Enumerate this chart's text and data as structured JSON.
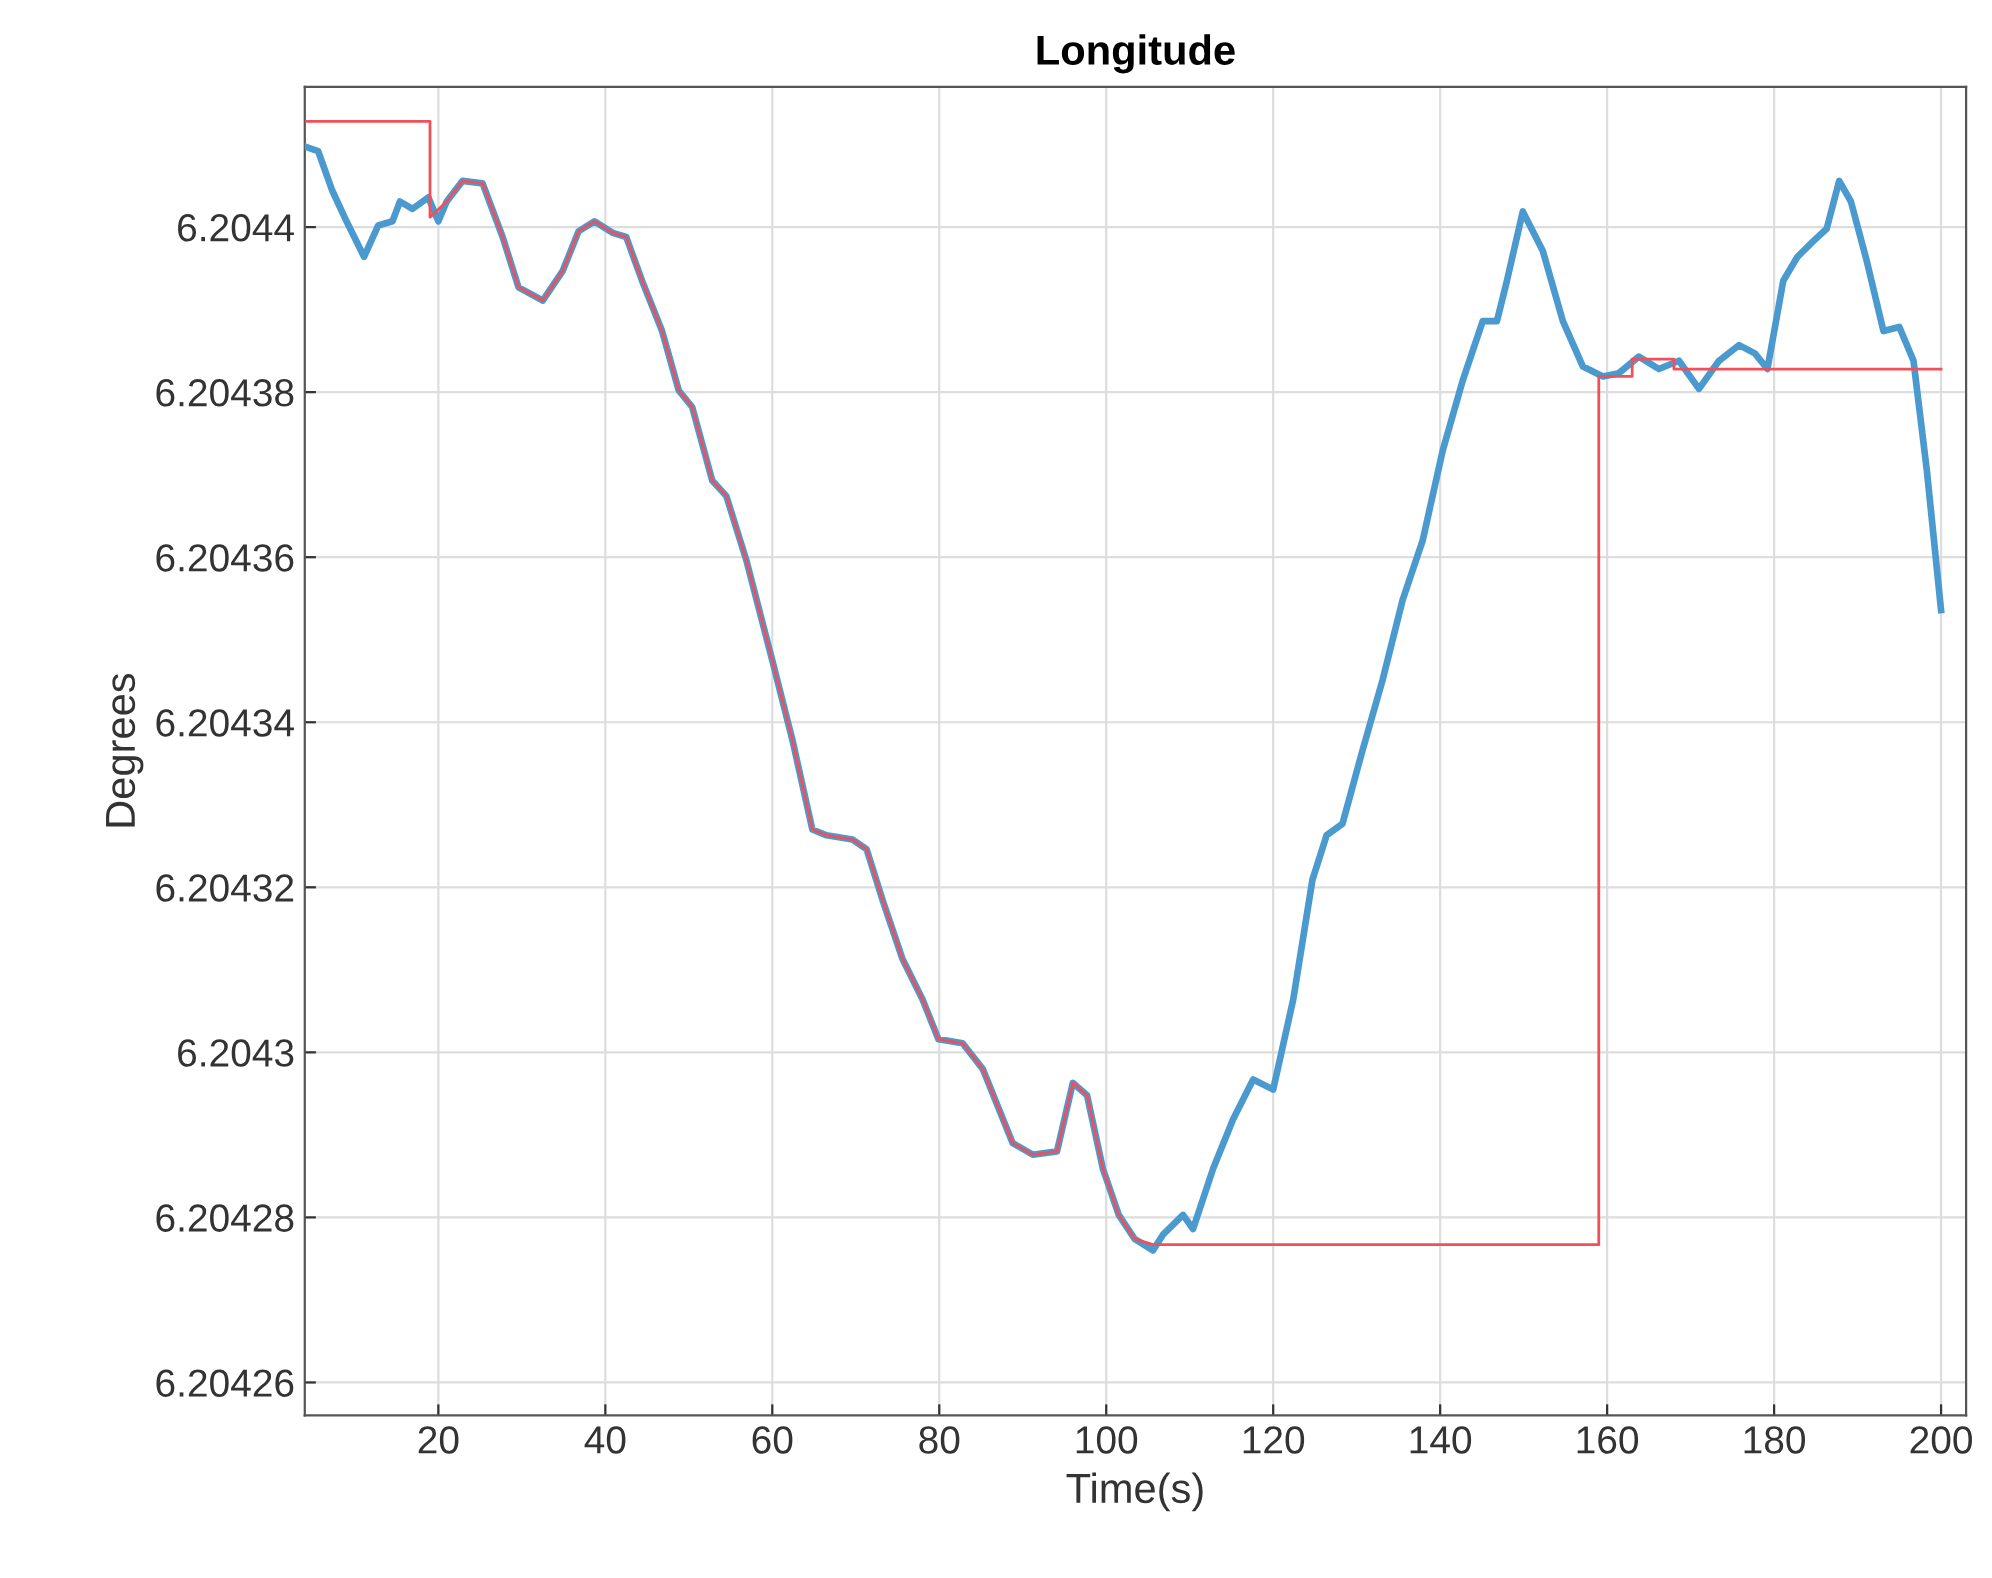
{
  "chart_data": {
    "type": "line",
    "title": "Longitude",
    "xlabel": "Time(s)",
    "ylabel": "Degrees",
    "xlim": [
      4,
      203
    ],
    "ylim": [
      6.204256,
      6.204417
    ],
    "xticks": [
      20,
      40,
      60,
      80,
      100,
      120,
      140,
      160,
      180,
      200
    ],
    "yticks": [
      6.20426,
      6.20428,
      6.2043,
      6.20432,
      6.20434,
      6.20436,
      6.20438,
      6.2044
    ],
    "grid": true,
    "marker": "none",
    "line_style": "solid",
    "series": [
      {
        "color": "#f0505a",
        "x": [
          4.2,
          19.0,
          19.0,
          21.0,
          22.9,
          25.3,
          27.7,
          29.6,
          32.5,
          34.9,
          36.8,
          38.7,
          40.9,
          42.5,
          44.4,
          46.8,
          48.8,
          50.4,
          52.8,
          54.5,
          56.9,
          60.0,
          62.4,
          64.8,
          66.5,
          69.6,
          71.3,
          73.2,
          75.6,
          78.0,
          79.9,
          82.8,
          85.2,
          88.8,
          91.2,
          94.1,
          96.0,
          97.7,
          99.6,
          101.5,
          103.4,
          105.6,
          159.0,
          159.0,
          163.0,
          163.0,
          168.0,
          168.0,
          200.0
        ],
        "values": [
          6.2044128,
          6.2044128,
          6.2044012,
          6.2044031,
          6.2044056,
          6.2044053,
          6.2043988,
          6.2043927,
          6.2043911,
          6.2043947,
          6.2043995,
          6.2044007,
          6.2043993,
          6.2043988,
          6.2043935,
          6.2043874,
          6.2043802,
          6.2043782,
          6.2043693,
          6.2043674,
          6.2043596,
          6.2043475,
          6.2043379,
          6.204327,
          6.2043263,
          6.2043258,
          6.2043246,
          6.2043185,
          6.2043113,
          6.2043064,
          6.2043016,
          6.2043011,
          6.204298,
          6.204289,
          6.2042876,
          6.204288,
          6.2042963,
          6.2042948,
          6.2042859,
          6.2042803,
          6.2042774,
          6.2042767,
          6.2042767,
          6.2043819,
          6.2043819,
          6.204384,
          6.204384,
          6.2043828,
          6.2043828
        ]
      },
      {
        "color": "#4a9ad0",
        "x": [
          4.2,
          5.6,
          7.3,
          9.0,
          11.1,
          12.8,
          14.5,
          15.4,
          16.9,
          18.8,
          20.0,
          21.0,
          22.9,
          25.3,
          27.7,
          29.6,
          32.5,
          34.9,
          36.8,
          38.7,
          40.9,
          42.5,
          44.4,
          46.8,
          48.8,
          50.4,
          52.8,
          54.5,
          56.9,
          60.0,
          62.4,
          64.8,
          66.5,
          69.6,
          71.3,
          73.2,
          75.6,
          78.0,
          79.9,
          82.8,
          85.2,
          88.8,
          91.2,
          94.1,
          96.0,
          97.7,
          99.6,
          101.5,
          103.4,
          105.6,
          106.8,
          109.2,
          110.4,
          112.8,
          115.2,
          117.6,
          120.0,
          122.4,
          124.7,
          126.4,
          128.3,
          130.7,
          133.1,
          135.5,
          137.9,
          140.3,
          142.7,
          145.1,
          146.8,
          148.0,
          149.9,
          152.3,
          154.7,
          157.1,
          159.5,
          161.4,
          163.8,
          166.2,
          168.6,
          171.0,
          173.4,
          175.8,
          177.7,
          179.2,
          181.1,
          182.8,
          184.7,
          186.3,
          187.8,
          189.2,
          191.1,
          193.1,
          195.0,
          196.7,
          198.3,
          200.0
        ],
        "values": [
          6.2044097,
          6.2044092,
          6.2044044,
          6.2044007,
          6.2043964,
          6.2044002,
          6.2044007,
          6.2044031,
          6.2044022,
          6.2044036,
          6.2044007,
          6.2044031,
          6.2044056,
          6.2044053,
          6.2043988,
          6.2043927,
          6.2043911,
          6.2043947,
          6.2043995,
          6.2044007,
          6.2043993,
          6.2043988,
          6.2043935,
          6.2043874,
          6.2043802,
          6.2043782,
          6.2043693,
          6.2043674,
          6.2043596,
          6.2043475,
          6.2043379,
          6.204327,
          6.2043263,
          6.2043258,
          6.2043246,
          6.2043185,
          6.2043113,
          6.2043064,
          6.2043016,
          6.2043011,
          6.204298,
          6.204289,
          6.2042876,
          6.204288,
          6.2042963,
          6.2042948,
          6.2042859,
          6.2042803,
          6.2042774,
          6.204276,
          6.2042779,
          6.2042803,
          6.2042786,
          6.2042859,
          6.2042919,
          6.2042967,
          6.2042955,
          6.2043064,
          6.2043209,
          6.2043263,
          6.2043277,
          6.2043366,
          6.2043451,
          6.2043548,
          6.204362,
          6.2043729,
          6.2043814,
          6.2043886,
          6.2043886,
          6.2043935,
          6.2044019,
          6.2043971,
          6.2043886,
          6.2043831,
          6.2043819,
          6.2043823,
          6.2043843,
          6.2043828,
          6.2043838,
          6.2043804,
          6.2043838,
          6.2043857,
          6.2043847,
          6.2043828,
          6.2043935,
          6.2043964,
          6.2043983,
          6.2043998,
          6.2044056,
          6.2044031,
          6.2043959,
          6.2043874,
          6.2043879,
          6.2043838,
          6.2043705,
          6.2043536
        ]
      }
    ]
  }
}
